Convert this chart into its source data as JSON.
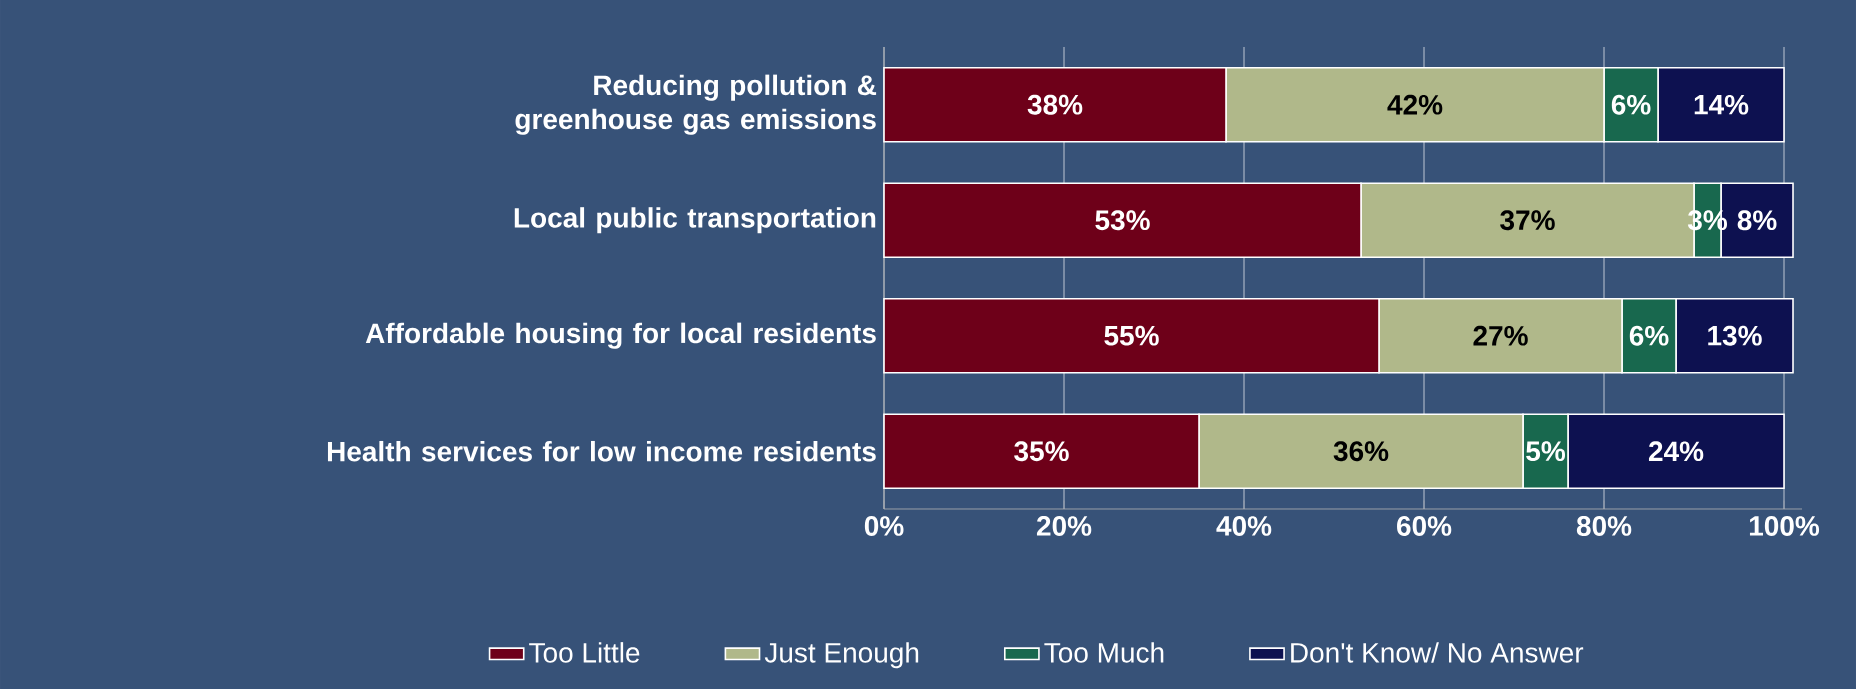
{
  "chart_data": {
    "type": "bar",
    "orientation": "horizontal",
    "stacked": true,
    "categories": [
      "Reducing pollution & greenhouse gas emissions",
      "Local public transportation",
      "Affordable housing for local residents",
      "Health services for low income residents"
    ],
    "series": [
      {
        "name": "Too Little",
        "color": "#6e0019",
        "values": [
          38,
          53,
          55,
          35
        ],
        "value_labels": [
          "38%",
          "53%",
          "55%",
          "35%"
        ]
      },
      {
        "name": "Just Enough",
        "color": "#b0b88a",
        "values": [
          42,
          37,
          27,
          36
        ],
        "value_labels": [
          "42%",
          "37%",
          "27%",
          "36%"
        ]
      },
      {
        "name": "Too Much",
        "color": "#18684e",
        "values": [
          6,
          3,
          6,
          5
        ],
        "value_labels": [
          "6%",
          "3%",
          "6%",
          "5%"
        ]
      },
      {
        "name": "Don't Know/ No Answer",
        "color": "#0d1150",
        "values": [
          14,
          8,
          13,
          24
        ],
        "value_labels": [
          "14%",
          "8%",
          "13%",
          "24%"
        ]
      }
    ],
    "xlim": [
      0,
      102
    ],
    "xticks": [
      {
        "value": 0,
        "label": "0%"
      },
      {
        "value": 20,
        "label": "20%"
      },
      {
        "value": 40,
        "label": "40%"
      },
      {
        "value": 60,
        "label": "60%"
      },
      {
        "value": 80,
        "label": "80%"
      },
      {
        "value": 100,
        "label": "100%"
      }
    ],
    "grid": "x",
    "legend": "bottom"
  }
}
